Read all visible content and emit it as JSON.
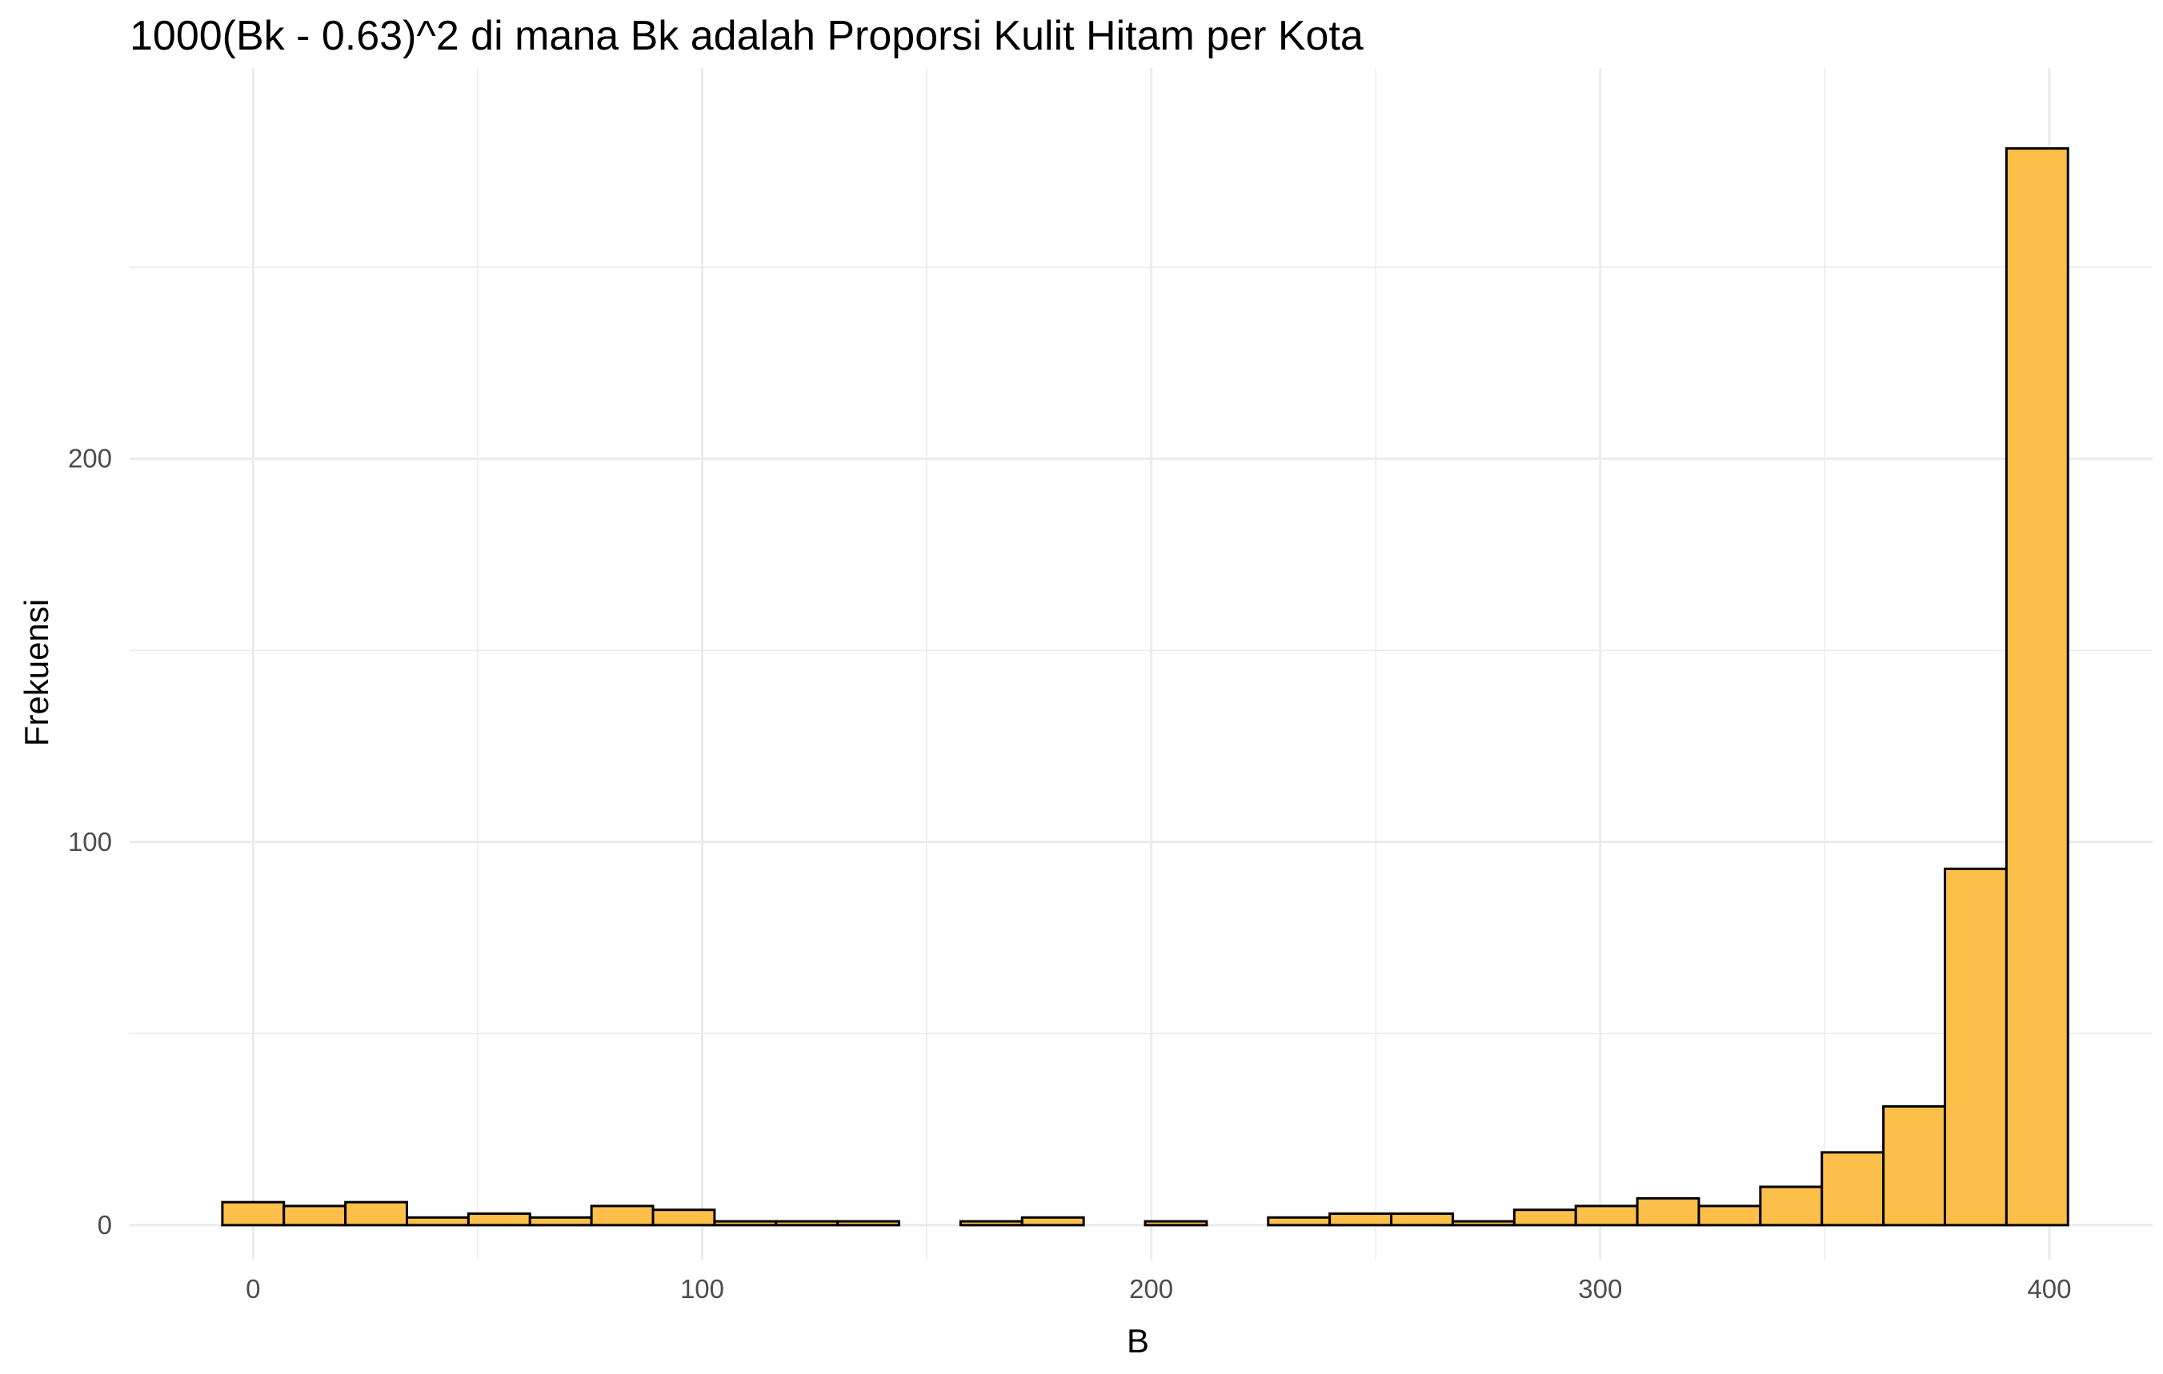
{
  "chart_data": {
    "type": "bar",
    "title": "1000(Bk - 0.63)^2 di mana Bk adalah Proporsi Kulit Hitam per Kota",
    "xlabel": "B",
    "ylabel": "Frekuensi",
    "xlim": [
      -27.5,
      423
    ],
    "ylim": [
      -9,
      302
    ],
    "x_ticks": [
      0,
      100,
      200,
      300,
      400
    ],
    "x_tick_labels": [
      "0",
      "100",
      "200",
      "300",
      "400"
    ],
    "y_ticks": [
      0,
      100,
      200
    ],
    "y_tick_labels": [
      "0",
      "100",
      "200"
    ],
    "grid": true,
    "bin_width": 13.7,
    "bin_start": -6.85,
    "values": [
      6,
      5,
      6,
      2,
      3,
      2,
      5,
      4,
      1,
      1,
      1,
      0,
      1,
      2,
      0,
      1,
      0,
      2,
      3,
      3,
      1,
      4,
      5,
      7,
      5,
      10,
      19,
      31,
      93,
      281
    ],
    "colors": {
      "bar_fill": "#fcbf49",
      "bar_stroke": "#000000",
      "grid": "#ebebeb"
    }
  }
}
